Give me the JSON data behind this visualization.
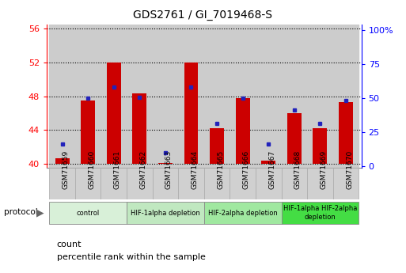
{
  "title": "GDS2761 / GI_7019468-S",
  "samples": [
    "GSM71659",
    "GSM71660",
    "GSM71661",
    "GSM71662",
    "GSM71663",
    "GSM71664",
    "GSM71665",
    "GSM71666",
    "GSM71667",
    "GSM71668",
    "GSM71669",
    "GSM71670"
  ],
  "bar_tops": [
    40.6,
    47.5,
    52.0,
    48.3,
    40.1,
    52.0,
    44.2,
    47.8,
    40.4,
    46.0,
    44.2,
    47.3
  ],
  "blue_y_left": [
    42.3,
    47.8,
    49.1,
    47.9,
    41.3,
    49.1,
    44.8,
    47.8,
    42.3,
    46.4,
    44.8,
    47.5
  ],
  "bar_baseline": 40.0,
  "ylim_left": [
    39.5,
    56.5
  ],
  "ylim_right": [
    -1.5,
    104.0
  ],
  "yticks_left": [
    40,
    44,
    48,
    52,
    56
  ],
  "yticks_right": [
    0,
    25,
    50,
    75,
    100
  ],
  "bar_color": "#CC0000",
  "blue_color": "#2222BB",
  "bar_width": 0.55,
  "groups": [
    {
      "label": "control",
      "start": 0,
      "end": 2,
      "color": "#d8f0d8"
    },
    {
      "label": "HIF-1alpha depletion",
      "start": 3,
      "end": 5,
      "color": "#c0e8c0"
    },
    {
      "label": "HIF-2alpha depletion",
      "start": 6,
      "end": 8,
      "color": "#a0e8a0"
    },
    {
      "label": "HIF-1alpha HIF-2alpha\ndepletion",
      "start": 9,
      "end": 11,
      "color": "#44dd44"
    }
  ],
  "legend_count": "count",
  "legend_pct": "percentile rank within the sample",
  "protocol_label": "protocol",
  "xtick_bg": "#d0d0d0",
  "plot_bg": "#ffffff"
}
